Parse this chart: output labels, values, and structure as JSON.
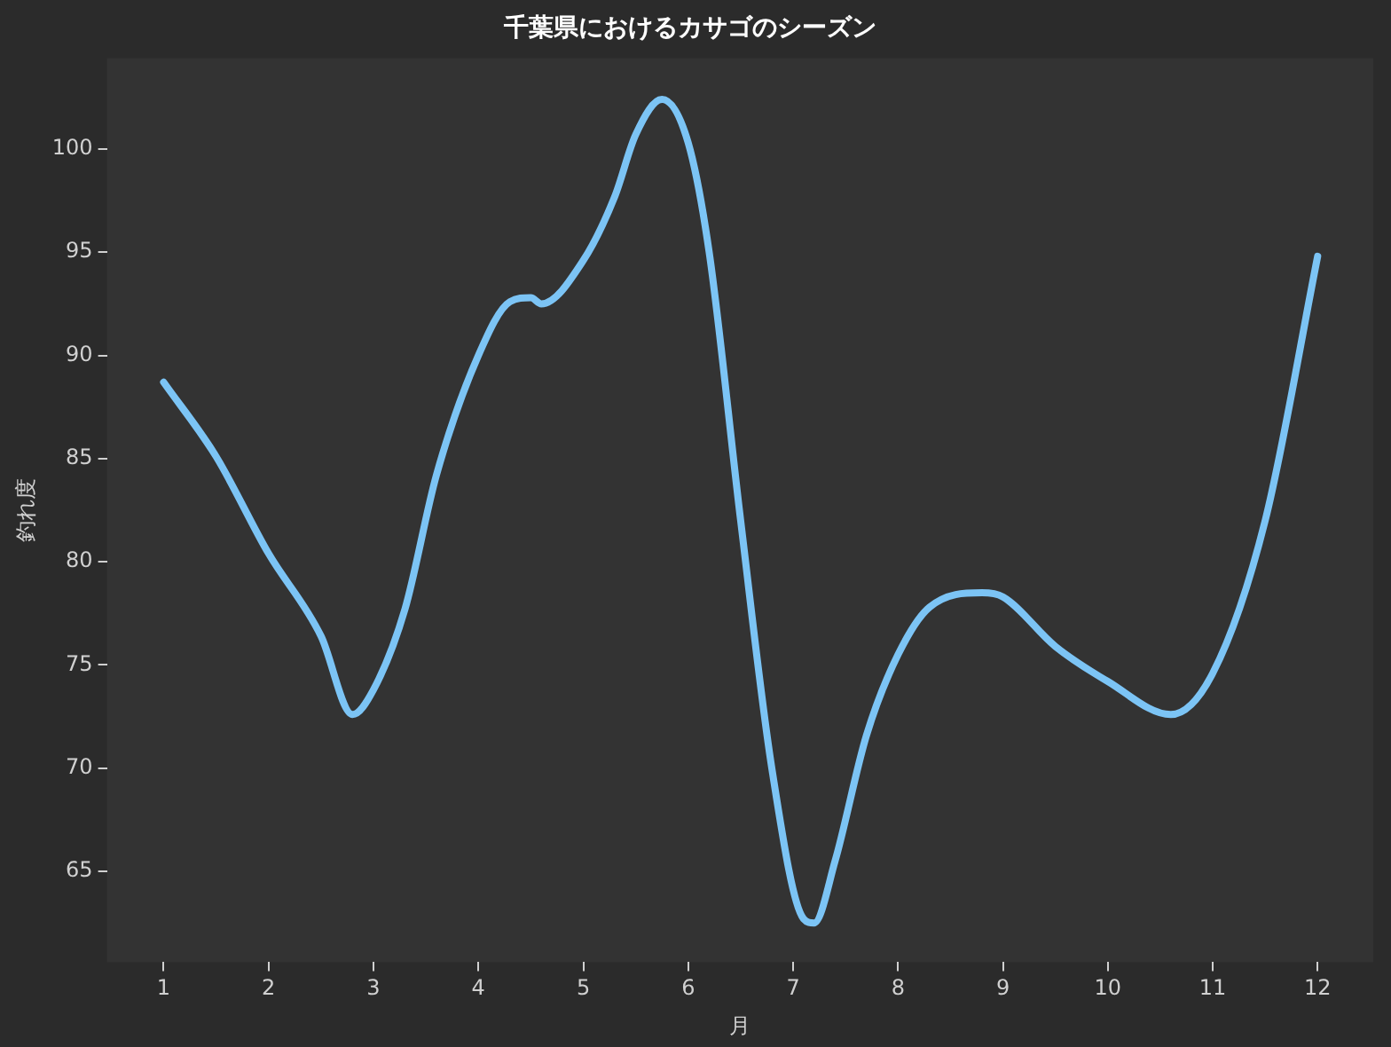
{
  "chart_data": {
    "type": "line",
    "title": "千葉県におけるカサゴのシーズン",
    "xlabel": "月",
    "ylabel": "釣れ度",
    "x": [
      1,
      1.5,
      2,
      2.5,
      2.8,
      3,
      3.3,
      3.6,
      4,
      4.3,
      4.5,
      4.6,
      5,
      5.3,
      5.5,
      5.75,
      6,
      6.2,
      6.5,
      6.8,
      7.1,
      7.2,
      7.4,
      7.7,
      8,
      8.3,
      8.8,
      9,
      9.5,
      10,
      10.6,
      11,
      11.5,
      12
    ],
    "series": [
      {
        "color": "#7cc4f5",
        "values": [
          88.7,
          85.1,
          80.4,
          76.4,
          72.6,
          73.8,
          77.7,
          84.2,
          90.0,
          92.6,
          92.8,
          92.5,
          94.6,
          97.7,
          100.7,
          102.4,
          100.3,
          95.0,
          82.0,
          69.9,
          62.7,
          62.5,
          65.5,
          71.6,
          75.5,
          77.8,
          78.5,
          78.3,
          75.9,
          74.2,
          72.6,
          74.6,
          82.0,
          94.8
        ]
      }
    ],
    "xlim": [
      0.46,
      12.53
    ],
    "ylim": [
      60.6,
      104.4
    ],
    "xticks": [
      1,
      2,
      3,
      4,
      5,
      6,
      7,
      8,
      9,
      10,
      11,
      12
    ],
    "yticks": [
      65,
      70,
      75,
      80,
      85,
      90,
      95,
      100
    ],
    "grid": false,
    "legend": false,
    "marker": "none",
    "line_style": "solid"
  }
}
